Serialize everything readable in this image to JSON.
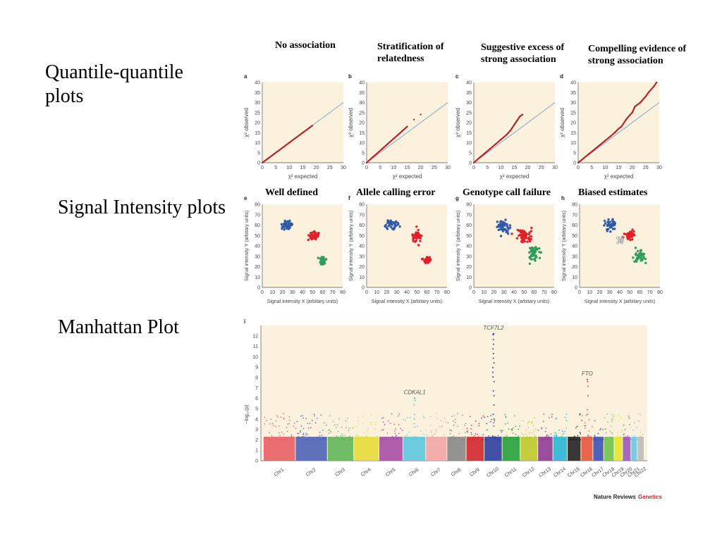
{
  "sections": {
    "qq": "Quantile-quantile plots",
    "si": "Signal Intensity plots",
    "manhattan": "Manhattan Plot"
  },
  "column_headers": [
    "No association",
    "Stratification of relatedness",
    "Suggestive excess of strong association",
    "Compelling evidence of strong association"
  ],
  "panel_labels_row2": [
    "Well defined",
    "Allele calling error",
    "Genotype call failure",
    "Biased estimates"
  ],
  "credit": {
    "journal": "Nature Reviews",
    "section": "Genetics"
  },
  "colors": {
    "panel_bg": "#fbf1dd",
    "qq_observed": "#b5252c",
    "qq_expected": "#7fa6c4",
    "cluster_blue": "#2e5aa6",
    "cluster_red": "#e0212b",
    "cluster_green": "#2f9e5a",
    "outlier": "#9aa0a6"
  },
  "chart_data": [
    {
      "type": "scatter",
      "panel": "a",
      "xlabel": "χ² expected",
      "ylabel": "χ² observed",
      "xlim": [
        0,
        30
      ],
      "ylim": [
        0,
        40
      ],
      "xticks": [
        0,
        5,
        10,
        15,
        20,
        25,
        30
      ],
      "yticks": [
        0,
        5,
        10,
        15,
        20,
        25,
        30,
        35,
        40
      ],
      "expected_line": [
        [
          0,
          0
        ],
        [
          30,
          30
        ]
      ],
      "series": [
        {
          "values": [
            [
              0,
              0
            ],
            [
              2,
              2
            ],
            [
              4,
              4
            ],
            [
              6,
              6
            ],
            [
              8,
              8
            ],
            [
              10,
              10
            ],
            [
              12,
              12
            ],
            [
              14,
              14
            ],
            [
              15,
              15
            ],
            [
              17,
              17
            ],
            [
              18.5,
              18.5
            ]
          ]
        }
      ]
    },
    {
      "type": "scatter",
      "panel": "b",
      "xlabel": "χ² expected",
      "ylabel": "χ² observed",
      "xlim": [
        0,
        30
      ],
      "ylim": [
        0,
        40
      ],
      "xticks": [
        0,
        5,
        10,
        15,
        20,
        25,
        30
      ],
      "yticks": [
        0,
        5,
        10,
        15,
        20,
        25,
        30,
        35,
        40
      ],
      "expected_line": [
        [
          0,
          0
        ],
        [
          30,
          30
        ]
      ],
      "series": [
        {
          "values": [
            [
              0,
              0
            ],
            [
              2,
              2.5
            ],
            [
              4,
              4.8
            ],
            [
              6,
              7.2
            ],
            [
              8,
              9.6
            ],
            [
              10,
              12
            ],
            [
              12,
              14.4
            ],
            [
              13.5,
              16.2
            ],
            [
              15,
              18
            ],
            [
              17.5,
              21.5
            ],
            [
              20,
              24
            ]
          ]
        }
      ]
    },
    {
      "type": "scatter",
      "panel": "c",
      "xlabel": "χ² expected",
      "ylabel": "χ² observed",
      "xlim": [
        0,
        30
      ],
      "ylim": [
        0,
        40
      ],
      "xticks": [
        0,
        5,
        10,
        15,
        20,
        25,
        30
      ],
      "yticks": [
        0,
        5,
        10,
        15,
        20,
        25,
        30,
        35,
        40
      ],
      "expected_line": [
        [
          0,
          0
        ],
        [
          30,
          30
        ]
      ],
      "series": [
        {
          "values": [
            [
              0,
              0
            ],
            [
              2,
              2.4
            ],
            [
              4,
              4.6
            ],
            [
              6,
              6.9
            ],
            [
              8,
              9.2
            ],
            [
              10,
              11.5
            ],
            [
              12,
              13.8
            ],
            [
              13.5,
              16
            ],
            [
              14,
              17
            ],
            [
              15,
              19
            ],
            [
              16,
              21
            ],
            [
              17,
              23
            ],
            [
              18,
              24
            ]
          ]
        }
      ]
    },
    {
      "type": "scatter",
      "panel": "d",
      "xlabel": "χ² expected",
      "ylabel": "χ² observed",
      "xlim": [
        0,
        30
      ],
      "ylim": [
        0,
        40
      ],
      "xticks": [
        0,
        5,
        10,
        15,
        20,
        25,
        30
      ],
      "yticks": [
        0,
        5,
        10,
        15,
        20,
        25,
        30,
        35,
        40
      ],
      "expected_line": [
        [
          0,
          0
        ],
        [
          30,
          30
        ]
      ],
      "series": [
        {
          "values": [
            [
              0,
              0
            ],
            [
              2,
              2.2
            ],
            [
              4,
              4.4
            ],
            [
              6,
              6.6
            ],
            [
              8,
              8.8
            ],
            [
              10,
              11
            ],
            [
              12,
              13.2
            ],
            [
              13.5,
              15
            ],
            [
              15,
              17
            ],
            [
              16,
              18
            ],
            [
              18,
              22
            ],
            [
              20,
              25
            ],
            [
              21,
              28
            ],
            [
              23,
              30
            ],
            [
              25,
              33
            ],
            [
              26,
              35
            ],
            [
              28,
              38
            ],
            [
              29,
              40
            ]
          ]
        }
      ]
    },
    {
      "type": "scatter",
      "panel": "e",
      "xlabel": "Signal intensity X (arbitary units)",
      "ylabel": "Signal intensity Y (arbitary units)",
      "xlim": [
        0,
        80
      ],
      "ylim": [
        0,
        80
      ],
      "xticks": [
        0,
        10,
        20,
        30,
        40,
        50,
        60,
        70,
        80
      ],
      "yticks": [
        0,
        10,
        20,
        30,
        40,
        50,
        60,
        70,
        80
      ],
      "series": [
        {
          "cluster": "blue",
          "center": [
            25,
            60
          ],
          "spread": [
            4,
            3
          ],
          "count": 40
        },
        {
          "cluster": "red",
          "center": [
            50,
            50
          ],
          "spread": [
            4,
            3
          ],
          "count": 40
        },
        {
          "cluster": "green",
          "center": [
            60,
            26
          ],
          "spread": [
            3,
            3
          ],
          "count": 40
        }
      ]
    },
    {
      "type": "scatter",
      "panel": "f",
      "xlabel": "Signal intensity X (arbitary units)",
      "ylabel": "Signal intensity Y (arbitary units)",
      "xlim": [
        0,
        80
      ],
      "ylim": [
        0,
        80
      ],
      "xticks": [
        0,
        10,
        20,
        30,
        40,
        50,
        60,
        70,
        80
      ],
      "yticks": [
        0,
        10,
        20,
        30,
        40,
        50,
        60,
        70,
        80
      ],
      "series": [
        {
          "cluster": "blue",
          "center": [
            25,
            60
          ],
          "spread": [
            4,
            3
          ],
          "count": 40
        },
        {
          "cluster": "red",
          "center": [
            50,
            49
          ],
          "spread": [
            3,
            5
          ],
          "count": 40
        },
        {
          "cluster": "red",
          "center": [
            60,
            26
          ],
          "spread": [
            3,
            2
          ],
          "count": 30
        }
      ]
    },
    {
      "type": "scatter",
      "panel": "g",
      "xlabel": "Signal intensity X (arbitary units)",
      "ylabel": "Signal intensity Y (arbitary units)",
      "xlim": [
        0,
        80
      ],
      "ylim": [
        0,
        80
      ],
      "xticks": [
        0,
        10,
        20,
        30,
        40,
        50,
        60,
        70,
        80
      ],
      "yticks": [
        0,
        10,
        20,
        30,
        40,
        50,
        60,
        70,
        80
      ],
      "series": [
        {
          "cluster": "blue",
          "center": [
            30,
            58
          ],
          "spread": [
            5,
            5
          ],
          "count": 45
        },
        {
          "cluster": "red",
          "center": [
            50,
            50
          ],
          "spread": [
            6,
            4
          ],
          "count": 60
        },
        {
          "cluster": "green",
          "center": [
            60,
            32
          ],
          "spread": [
            4,
            5
          ],
          "count": 45
        }
      ]
    },
    {
      "type": "scatter",
      "panel": "h",
      "xlabel": "Signal intensity X (arbitary units)",
      "ylabel": "Signal intensity Y (arbitary units)",
      "xlim": [
        0,
        80
      ],
      "ylim": [
        0,
        80
      ],
      "xticks": [
        0,
        10,
        20,
        30,
        40,
        50,
        60,
        70,
        80
      ],
      "yticks": [
        0,
        10,
        20,
        30,
        40,
        50,
        60,
        70,
        80
      ],
      "series": [
        {
          "cluster": "blue",
          "center": [
            30,
            60
          ],
          "spread": [
            4,
            4
          ],
          "count": 40
        },
        {
          "cluster": "red",
          "center": [
            50,
            50
          ],
          "spread": [
            4,
            3
          ],
          "count": 45
        },
        {
          "cluster": "green",
          "center": [
            60,
            30
          ],
          "spread": [
            4,
            5
          ],
          "count": 40
        },
        {
          "cluster": "outlier",
          "center": [
            42,
            46
          ],
          "spread": [
            3,
            3
          ],
          "count": 10
        }
      ]
    },
    {
      "type": "scatter",
      "panel": "i",
      "ylabel": "−log₁₀(p)",
      "ylim": [
        0,
        13
      ],
      "yticks": [
        0,
        1,
        2,
        3,
        4,
        5,
        6,
        7,
        8,
        9,
        10,
        11,
        12
      ],
      "categories": [
        "Chr1",
        "Chr2",
        "Chr3",
        "Chr4",
        "Chr5",
        "Chr6",
        "Chr7",
        "Chr8",
        "Chr9",
        "Chr10",
        "Chr11",
        "Chr12",
        "Chr13",
        "Chr14",
        "Chr15",
        "Chr16",
        "Chr17",
        "Chr18",
        "Chr19",
        "Chr20",
        "Chr21",
        "Chr22"
      ],
      "chromosome_colors": [
        "#e85f66",
        "#4f63b8",
        "#62b659",
        "#e6dc3c",
        "#a64fa6",
        "#5cc7dd",
        "#f2a6a6",
        "#888888",
        "#d2262e",
        "#2e3f9e",
        "#27a03c",
        "#bcc92c",
        "#8e3c97",
        "#2bb5d6",
        "#222222",
        "#e8553e",
        "#3b52b3",
        "#6fc24c",
        "#e6e62e",
        "#9b59b6",
        "#6ec6e6",
        "#bbbbbb"
      ],
      "peaks": [
        {
          "chr": "Chr6",
          "label": "CDKAL1",
          "max": 6
        },
        {
          "chr": "Chr10",
          "label": "TCF7L2",
          "max": 12.2
        },
        {
          "chr": "Chr16",
          "label": "FTO",
          "max": 7.8
        }
      ]
    }
  ]
}
